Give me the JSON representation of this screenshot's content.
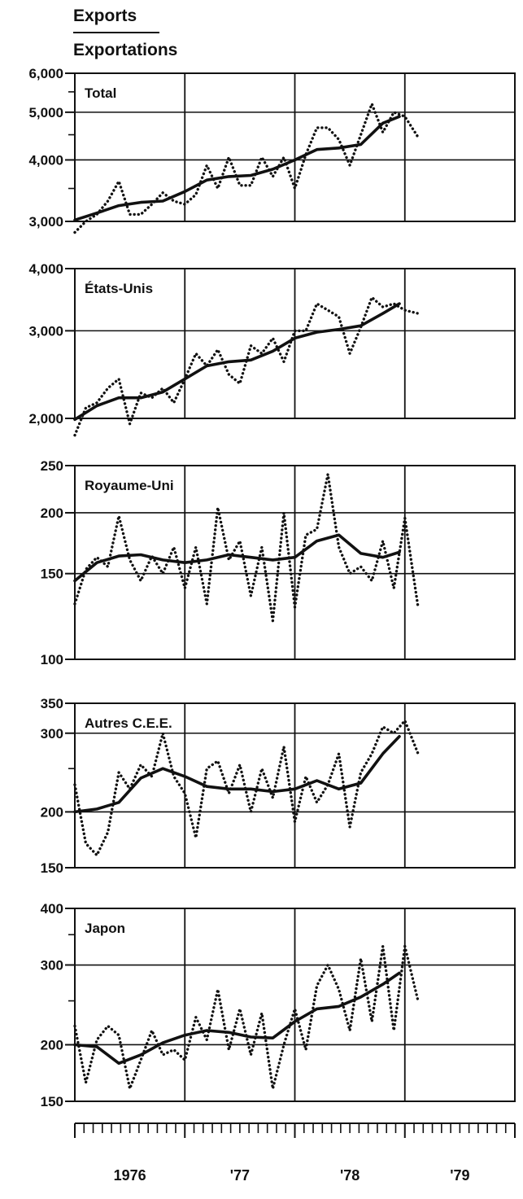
{
  "header": {
    "line1": "Exports",
    "line2": "Exportations"
  },
  "colors": {
    "ink": "#111111",
    "background": "#ffffff"
  },
  "x_axis": {
    "labels": [
      "1976",
      "'77",
      "'78",
      "'79"
    ],
    "range": [
      1976.0,
      1980.0
    ],
    "label_positions": [
      1976.5,
      1977.5,
      1978.5,
      1979.5
    ],
    "year_dividers": [
      1977.0,
      1978.0,
      1979.0
    ],
    "minor_ticks_per_year": 12
  },
  "chart_data": [
    {
      "type": "line",
      "title": "Total",
      "yscale": "log",
      "ylim": [
        3000,
        6000
      ],
      "yticks": [
        3000,
        4000,
        5000,
        6000
      ],
      "ytick_labels": [
        "3,000",
        "4,000",
        "5,000",
        "6,000"
      ],
      "yminor": [
        3500,
        4500,
        5500
      ],
      "ygrid": [
        4000,
        5000
      ],
      "grid": true,
      "series": [
        {
          "style": "dotted",
          "x": [
            1976.0,
            1976.1,
            1976.2,
            1976.3,
            1976.4,
            1976.5,
            1976.6,
            1976.7,
            1976.8,
            1976.9,
            1977.0,
            1977.1,
            1977.2,
            1977.3,
            1977.4,
            1977.5,
            1977.6,
            1977.7,
            1977.8,
            1977.9,
            1978.0,
            1978.1,
            1978.2,
            1978.3,
            1978.4,
            1978.5,
            1978.6,
            1978.7,
            1978.8,
            1978.9,
            1979.0,
            1979.12
          ],
          "values": [
            2850,
            3000,
            3100,
            3300,
            3620,
            3100,
            3100,
            3250,
            3430,
            3300,
            3250,
            3400,
            3900,
            3500,
            4050,
            3550,
            3550,
            4050,
            3700,
            4050,
            3500,
            4100,
            4650,
            4650,
            4400,
            3900,
            4500,
            5200,
            4550,
            5000,
            4900,
            4450
          ]
        },
        {
          "style": "solid",
          "x": [
            1976.0,
            1976.2,
            1976.4,
            1976.6,
            1976.8,
            1977.0,
            1977.2,
            1977.4,
            1977.6,
            1977.8,
            1978.0,
            1978.2,
            1978.4,
            1978.6,
            1978.8,
            1978.95
          ],
          "values": [
            3020,
            3120,
            3230,
            3280,
            3300,
            3450,
            3640,
            3700,
            3720,
            3830,
            4000,
            4200,
            4230,
            4300,
            4750,
            4900
          ]
        }
      ]
    },
    {
      "type": "line",
      "title": "États-Unis",
      "yscale": "log",
      "ylim": [
        2000,
        4000
      ],
      "yticks": [
        2000,
        3000,
        4000
      ],
      "ytick_labels": [
        "2,000",
        "3,000",
        "4,000"
      ],
      "yminor": [],
      "ygrid": [
        3000
      ],
      "grid": true,
      "series": [
        {
          "style": "dotted",
          "x": [
            1976.0,
            1976.1,
            1976.2,
            1976.3,
            1976.4,
            1976.5,
            1976.6,
            1976.7,
            1976.8,
            1976.9,
            1977.0,
            1977.1,
            1977.2,
            1977.3,
            1977.4,
            1977.5,
            1977.6,
            1977.7,
            1977.8,
            1977.9,
            1978.0,
            1978.1,
            1978.2,
            1978.3,
            1978.4,
            1978.5,
            1978.6,
            1978.7,
            1978.8,
            1978.9,
            1979.0,
            1979.12
          ],
          "values": [
            1850,
            2100,
            2150,
            2300,
            2400,
            1950,
            2250,
            2200,
            2300,
            2150,
            2400,
            2700,
            2550,
            2750,
            2450,
            2350,
            2800,
            2700,
            2900,
            2600,
            3000,
            3000,
            3400,
            3300,
            3200,
            2700,
            3050,
            3500,
            3350,
            3400,
            3300,
            3250
          ]
        },
        {
          "style": "solid",
          "x": [
            1976.0,
            1976.2,
            1976.4,
            1976.6,
            1976.8,
            1977.0,
            1977.2,
            1977.4,
            1977.6,
            1977.8,
            1978.0,
            1978.2,
            1978.4,
            1978.6,
            1978.8,
            1978.95
          ],
          "values": [
            1990,
            2120,
            2200,
            2200,
            2260,
            2400,
            2550,
            2600,
            2620,
            2730,
            2900,
            2980,
            3020,
            3070,
            3250,
            3400
          ]
        }
      ]
    },
    {
      "type": "line",
      "title": "Royaume-Uni",
      "yscale": "log",
      "ylim": [
        100,
        250
      ],
      "yticks": [
        100,
        150,
        200,
        250
      ],
      "ytick_labels": [
        "100",
        "150",
        "200",
        "250"
      ],
      "yminor": [],
      "ygrid": [
        150,
        200
      ],
      "grid": true,
      "series": [
        {
          "style": "dotted",
          "x": [
            1976.0,
            1976.1,
            1976.2,
            1976.3,
            1976.4,
            1976.5,
            1976.6,
            1976.7,
            1976.8,
            1976.9,
            1977.0,
            1977.1,
            1977.2,
            1977.3,
            1977.4,
            1977.5,
            1977.6,
            1977.7,
            1977.8,
            1977.9,
            1978.0,
            1978.1,
            1978.2,
            1978.3,
            1978.4,
            1978.5,
            1978.6,
            1978.7,
            1978.8,
            1978.9,
            1979.0,
            1979.12
          ],
          "values": [
            130,
            153,
            162,
            155,
            197,
            160,
            145,
            163,
            150,
            170,
            140,
            170,
            130,
            205,
            160,
            175,
            135,
            170,
            120,
            200,
            128,
            180,
            185,
            240,
            170,
            150,
            155,
            145,
            175,
            140,
            195,
            128
          ]
        },
        {
          "style": "solid",
          "x": [
            1976.0,
            1976.2,
            1976.4,
            1976.6,
            1976.8,
            1977.0,
            1977.2,
            1977.4,
            1977.6,
            1977.8,
            1978.0,
            1978.2,
            1978.4,
            1978.6,
            1978.8,
            1978.95
          ],
          "values": [
            145,
            158,
            163,
            164,
            160,
            158,
            160,
            164,
            162,
            160,
            162,
            175,
            180,
            165,
            162,
            166
          ]
        }
      ]
    },
    {
      "type": "line",
      "title": "Autres C.E.E.",
      "yscale": "log",
      "ylim": [
        150,
        350
      ],
      "yticks": [
        150,
        200,
        300,
        350
      ],
      "ytick_labels": [
        "150",
        "200",
        "300",
        "350"
      ],
      "yminor": [
        250
      ],
      "ygrid": [
        200,
        300
      ],
      "grid": true,
      "series": [
        {
          "style": "dotted",
          "x": [
            1976.0,
            1976.1,
            1976.2,
            1976.3,
            1976.4,
            1976.5,
            1976.6,
            1976.7,
            1976.8,
            1976.9,
            1977.0,
            1977.1,
            1977.2,
            1977.3,
            1977.4,
            1977.5,
            1977.6,
            1977.7,
            1977.8,
            1977.9,
            1978.0,
            1978.1,
            1978.2,
            1978.3,
            1978.4,
            1978.5,
            1978.6,
            1978.7,
            1978.8,
            1978.9,
            1979.0,
            1979.12
          ],
          "values": [
            230,
            170,
            160,
            180,
            245,
            225,
            255,
            240,
            300,
            240,
            220,
            175,
            250,
            260,
            220,
            255,
            200,
            250,
            215,
            280,
            190,
            240,
            210,
            230,
            270,
            185,
            245,
            270,
            310,
            300,
            320,
            270
          ]
        },
        {
          "style": "solid",
          "x": [
            1976.0,
            1976.2,
            1976.4,
            1976.6,
            1976.8,
            1977.0,
            1977.2,
            1977.4,
            1977.6,
            1977.8,
            1978.0,
            1978.2,
            1978.4,
            1978.6,
            1978.8,
            1978.95
          ],
          "values": [
            200,
            203,
            210,
            238,
            250,
            240,
            228,
            225,
            225,
            222,
            225,
            235,
            225,
            232,
            270,
            295
          ]
        }
      ]
    },
    {
      "type": "line",
      "title": "Japon",
      "yscale": "log",
      "ylim": [
        150,
        400
      ],
      "yticks": [
        150,
        200,
        300,
        400
      ],
      "ytick_labels": [
        "150",
        "200",
        "300",
        "400"
      ],
      "yminor": [
        250,
        350
      ],
      "ygrid": [
        200,
        300
      ],
      "grid": true,
      "series": [
        {
          "style": "dotted",
          "x": [
            1976.0,
            1976.1,
            1976.2,
            1976.3,
            1976.4,
            1976.5,
            1976.6,
            1976.7,
            1976.8,
            1976.9,
            1977.0,
            1977.1,
            1977.2,
            1977.3,
            1977.4,
            1977.5,
            1977.6,
            1977.7,
            1977.8,
            1977.9,
            1978.0,
            1978.1,
            1978.2,
            1978.3,
            1978.4,
            1978.5,
            1978.6,
            1978.7,
            1978.8,
            1978.9,
            1979.0,
            1979.12
          ],
          "values": [
            220,
            165,
            205,
            220,
            210,
            160,
            185,
            215,
            190,
            195,
            185,
            230,
            205,
            265,
            195,
            240,
            190,
            235,
            160,
            200,
            240,
            195,
            270,
            300,
            265,
            215,
            310,
            225,
            330,
            215,
            330,
            250
          ]
        },
        {
          "style": "solid",
          "x": [
            1976.0,
            1976.2,
            1976.4,
            1976.6,
            1976.8,
            1977.0,
            1977.2,
            1977.4,
            1977.6,
            1977.8,
            1978.0,
            1978.2,
            1978.4,
            1978.6,
            1978.8,
            1978.95
          ],
          "values": [
            200,
            198,
            182,
            190,
            202,
            210,
            215,
            213,
            208,
            207,
            225,
            240,
            243,
            255,
            272,
            288
          ]
        }
      ]
    }
  ]
}
